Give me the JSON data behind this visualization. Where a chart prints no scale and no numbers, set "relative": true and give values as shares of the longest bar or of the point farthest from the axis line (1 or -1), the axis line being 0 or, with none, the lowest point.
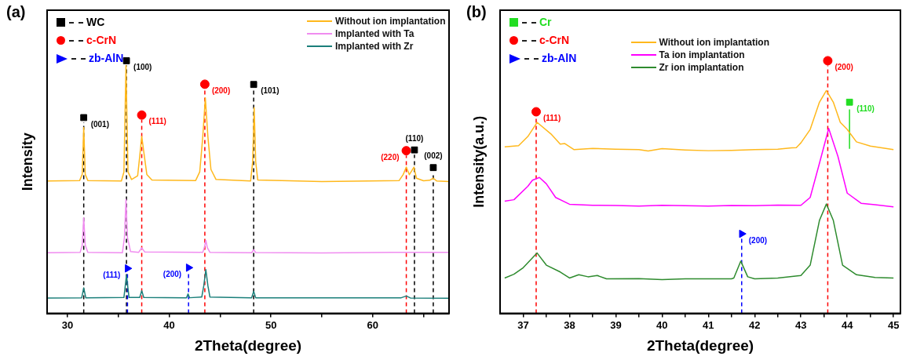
{
  "chart_data": [
    {
      "type": "line",
      "title": "(a)",
      "xlabel": "2Theta(degree)",
      "ylabel": "Intensity",
      "relative": true,
      "xlim": [
        28,
        67.5
      ],
      "xticks": [
        30,
        {
          "value": 35,
          "label": null
        },
        40,
        {
          "value": 45,
          "label": null
        },
        50,
        {
          "value": 55,
          "label": null
        },
        60,
        {
          "value": 65,
          "label": null
        }
      ],
      "legend": "top right",
      "series": [
        {
          "name": "Without ion implantation",
          "color": "#ffb81c",
          "x": [
            28,
            31.2,
            31.45,
            31.6,
            31.75,
            32,
            35.3,
            35.55,
            35.75,
            35.95,
            36.3,
            36.9,
            37.15,
            37.3,
            37.5,
            37.8,
            38.3,
            42.6,
            43.0,
            43.3,
            43.55,
            43.8,
            44.1,
            44.6,
            48.0,
            48.2,
            48.35,
            48.5,
            48.7,
            55,
            62.6,
            63.0,
            63.3,
            63.6,
            64.05,
            64.3,
            65.0,
            65.6,
            65.95,
            66.3,
            67.5
          ],
          "values": [
            0.524,
            0.526,
            0.55,
            0.736,
            0.55,
            0.526,
            0.524,
            0.56,
            0.981,
            0.56,
            0.53,
            0.545,
            0.64,
            0.701,
            0.64,
            0.55,
            0.528,
            0.526,
            0.56,
            0.7,
            0.853,
            0.7,
            0.57,
            0.53,
            0.524,
            0.6,
            0.814,
            0.6,
            0.528,
            0.522,
            0.526,
            0.55,
            0.579,
            0.549,
            0.579,
            0.535,
            0.525,
            0.527,
            0.535,
            0.524,
            0.522
          ]
        },
        {
          "name": "Implanted with Ta",
          "color": "#f08cf0",
          "x": [
            28,
            31.25,
            31.45,
            31.6,
            31.75,
            32,
            35.4,
            35.6,
            35.75,
            35.9,
            36.2,
            37.0,
            37.3,
            37.6,
            43.3,
            43.45,
            43.6,
            43.75,
            44,
            48.1,
            48.3,
            48.5,
            55,
            62,
            67.5
          ],
          "values": [
            0.24,
            0.242,
            0.27,
            0.378,
            0.27,
            0.242,
            0.24,
            0.3,
            0.451,
            0.3,
            0.245,
            0.242,
            0.26,
            0.243,
            0.242,
            0.26,
            0.289,
            0.26,
            0.242,
            0.24,
            0.252,
            0.241,
            0.239,
            0.242,
            0.242
          ]
        },
        {
          "name": "Implanted with Zr",
          "color": "#1a7f7a",
          "x": [
            28,
            31.4,
            31.6,
            31.8,
            35.55,
            35.8,
            36.05,
            37.1,
            37.3,
            37.5,
            41.7,
            41.85,
            42.0,
            43.2,
            43.4,
            43.6,
            43.8,
            44.0,
            48.1,
            48.3,
            48.5,
            62.8,
            63.3,
            63.7,
            67.5
          ],
          "values": [
            0.061,
            0.062,
            0.101,
            0.062,
            0.063,
            0.151,
            0.063,
            0.063,
            0.09,
            0.063,
            0.062,
            0.077,
            0.062,
            0.065,
            0.11,
            0.173,
            0.11,
            0.065,
            0.062,
            0.087,
            0.062,
            0.062,
            0.069,
            0.061,
            0.06
          ]
        },
        {
          "type": "scatter",
          "name": "WC",
          "color": "#000000",
          "marker": "square",
          "x": [
            31.6,
            35.8,
            48.3,
            64.1,
            65.95
          ],
          "values": [
            0.775,
            1,
            0.906,
            0.647,
            0.577
          ]
        },
        {
          "type": "scatter",
          "name": "c-CrN",
          "color": "#ff0000",
          "marker": "circle",
          "x": [
            37.3,
            43.5,
            63.3
          ],
          "values": [
            0.785,
            0.907,
            0.644
          ]
        },
        {
          "type": "scatter",
          "name": "zb-AlN",
          "color": "#0000ff",
          "marker": "triangle",
          "x": [
            35.9,
            41.9
          ],
          "values": [
            0.178,
            0.181
          ]
        }
      ],
      "ref_lines": [
        {
          "axis": "x",
          "value": 31.6,
          "color": "#000000",
          "line_style": "dashed"
        },
        {
          "axis": "x",
          "value": 35.8,
          "color": "#000000",
          "line_style": "dashed"
        },
        {
          "axis": "x",
          "value": 48.3,
          "color": "#000000",
          "line_style": "dashed"
        },
        {
          "axis": "x",
          "value": 64.1,
          "color": "#000000",
          "line_style": "dashed"
        },
        {
          "axis": "x",
          "value": 65.95,
          "color": "#000000",
          "line_style": "dashed"
        },
        {
          "axis": "x",
          "value": 37.3,
          "color": "#ff0000",
          "line_style": "dashed"
        },
        {
          "axis": "x",
          "value": 43.5,
          "color": "#ff0000",
          "line_style": "dashed"
        },
        {
          "axis": "x",
          "value": 63.3,
          "color": "#ff0000",
          "line_style": "dashed"
        },
        {
          "axis": "x",
          "value": 35.9,
          "color": "#0000ff",
          "line_style": "dashed"
        },
        {
          "axis": "x",
          "value": 41.9,
          "color": "#0000ff",
          "line_style": "dashed"
        }
      ],
      "annotations": [
        {
          "text": "(001)",
          "x": 31.6,
          "y": 0.775
        },
        {
          "text": "(100)",
          "x": 35.8,
          "y": 1
        },
        {
          "text": "(111)",
          "x": 37.3,
          "y": 0.785
        },
        {
          "text": "(200)",
          "x": 43.5,
          "y": 0.907
        },
        {
          "text": "(101)",
          "x": 48.3,
          "y": 0.906
        },
        {
          "text": "(220)",
          "x": 63.3,
          "y": 0.644
        },
        {
          "text": "(110)",
          "x": 64.1,
          "y": 0.647
        },
        {
          "text": "(002)",
          "x": 65.95,
          "y": 0.577
        },
        {
          "text": "(111)",
          "x": 35.9,
          "y": 0.178
        },
        {
          "text": "(200)",
          "x": 41.9,
          "y": 0.181
        }
      ]
    },
    {
      "type": "line",
      "title": "(b)",
      "xlabel": "2Theta(degree)",
      "ylabel": "Intensity(a.u.)",
      "relative": true,
      "xlim": [
        36.5,
        45.15
      ],
      "xticks": [
        37,
        {
          "value": 37.5,
          "label": null
        },
        38,
        {
          "value": 38.5,
          "label": null
        },
        39,
        {
          "value": 39.5,
          "label": null
        },
        40,
        {
          "value": 40.5,
          "label": null
        },
        41,
        {
          "value": 41.5,
          "label": null
        },
        42,
        {
          "value": 42.5,
          "label": null
        },
        43,
        {
          "value": 43.5,
          "label": null
        },
        44,
        {
          "value": 44.5,
          "label": null
        },
        45
      ],
      "legend": "top",
      "series": [
        {
          "name": "Without ion implantation",
          "color": "#ffb81c",
          "x": [
            36.6,
            36.9,
            37.1,
            37.3,
            37.6,
            37.8,
            37.9,
            38.1,
            38.5,
            39,
            39.5,
            39.7,
            40,
            40.5,
            41,
            41.5,
            42,
            42.5,
            42.8,
            42.9,
            43.0,
            43.2,
            43.4,
            43.55,
            43.7,
            43.85,
            44.0,
            44.2,
            44.5,
            45
          ],
          "values": [
            0.659,
            0.664,
            0.7,
            0.756,
            0.71,
            0.67,
            0.672,
            0.648,
            0.653,
            0.65,
            0.648,
            0.643,
            0.652,
            0.647,
            0.644,
            0.645,
            0.648,
            0.65,
            0.655,
            0.656,
            0.675,
            0.728,
            0.836,
            0.882,
            0.836,
            0.756,
            0.728,
            0.679,
            0.662,
            0.648
          ]
        },
        {
          "name": "Ta ion implantation",
          "color": "#ff00ff",
          "x": [
            36.6,
            36.8,
            37.1,
            37.2,
            37.35,
            37.5,
            37.7,
            38,
            38.5,
            39,
            39.5,
            40,
            40.5,
            41,
            41.5,
            42,
            42.5,
            43.0,
            43.2,
            43.4,
            43.6,
            43.8,
            44.0,
            44.3,
            44.6,
            45
          ],
          "values": [
            0.444,
            0.45,
            0.503,
            0.527,
            0.538,
            0.513,
            0.459,
            0.432,
            0.428,
            0.427,
            0.425,
            0.428,
            0.426,
            0.425,
            0.427,
            0.426,
            0.429,
            0.428,
            0.459,
            0.594,
            0.732,
            0.621,
            0.476,
            0.436,
            0.43,
            0.422
          ]
        },
        {
          "name": "Zr ion implantation",
          "color": "#2e8b2e",
          "x": [
            36.6,
            36.8,
            37.0,
            37.3,
            37.5,
            37.8,
            38.0,
            38.2,
            38.4,
            38.6,
            38.8,
            39.5,
            40,
            40.5,
            41,
            41.5,
            41.55,
            41.7,
            41.85,
            42,
            42.5,
            43.0,
            43.2,
            43.4,
            43.55,
            43.7,
            43.9,
            44.2,
            44.6,
            45
          ],
          "values": [
            0.14,
            0.155,
            0.181,
            0.239,
            0.191,
            0.164,
            0.14,
            0.153,
            0.145,
            0.15,
            0.137,
            0.138,
            0.134,
            0.137,
            0.137,
            0.137,
            0.14,
            0.207,
            0.145,
            0.137,
            0.14,
            0.15,
            0.191,
            0.368,
            0.433,
            0.368,
            0.191,
            0.153,
            0.142,
            0.14
          ]
        },
        {
          "type": "line",
          "color": "#22dd22",
          "x": [
            44.05,
            44.05
          ],
          "values": [
            0.651,
            0.807
          ]
        },
        {
          "type": "scatter",
          "name": "Cr",
          "color": "#22dd22",
          "marker": "square",
          "x": [
            44.05
          ],
          "values": [
            0.836
          ]
        },
        {
          "type": "scatter",
          "name": "c-CrN",
          "color": "#ff0000",
          "marker": "circle",
          "x": [
            37.28,
            43.58
          ],
          "values": [
            0.798,
            1
          ]
        },
        {
          "type": "scatter",
          "name": "zb-AlN",
          "color": "#0000ff",
          "marker": "triangle",
          "x": [
            41.72
          ],
          "values": [
            0.315
          ]
        }
      ],
      "ref_lines": [
        {
          "axis": "x",
          "value": 37.28,
          "color": "#ff0000",
          "line_style": "dashed"
        },
        {
          "axis": "x",
          "value": 43.58,
          "color": "#ff0000",
          "line_style": "dashed"
        },
        {
          "axis": "x",
          "value": 41.72,
          "color": "#0000ff",
          "line_style": "dashed"
        }
      ],
      "annotations": [
        {
          "text": "(111)",
          "x": 37.28,
          "y": 0.798
        },
        {
          "text": "(200)",
          "x": 43.58,
          "y": 1
        },
        {
          "text": "(110)",
          "x": 44.05,
          "y": 0.836
        },
        {
          "text": "(200)",
          "x": 41.72,
          "y": 0.315
        }
      ]
    }
  ]
}
